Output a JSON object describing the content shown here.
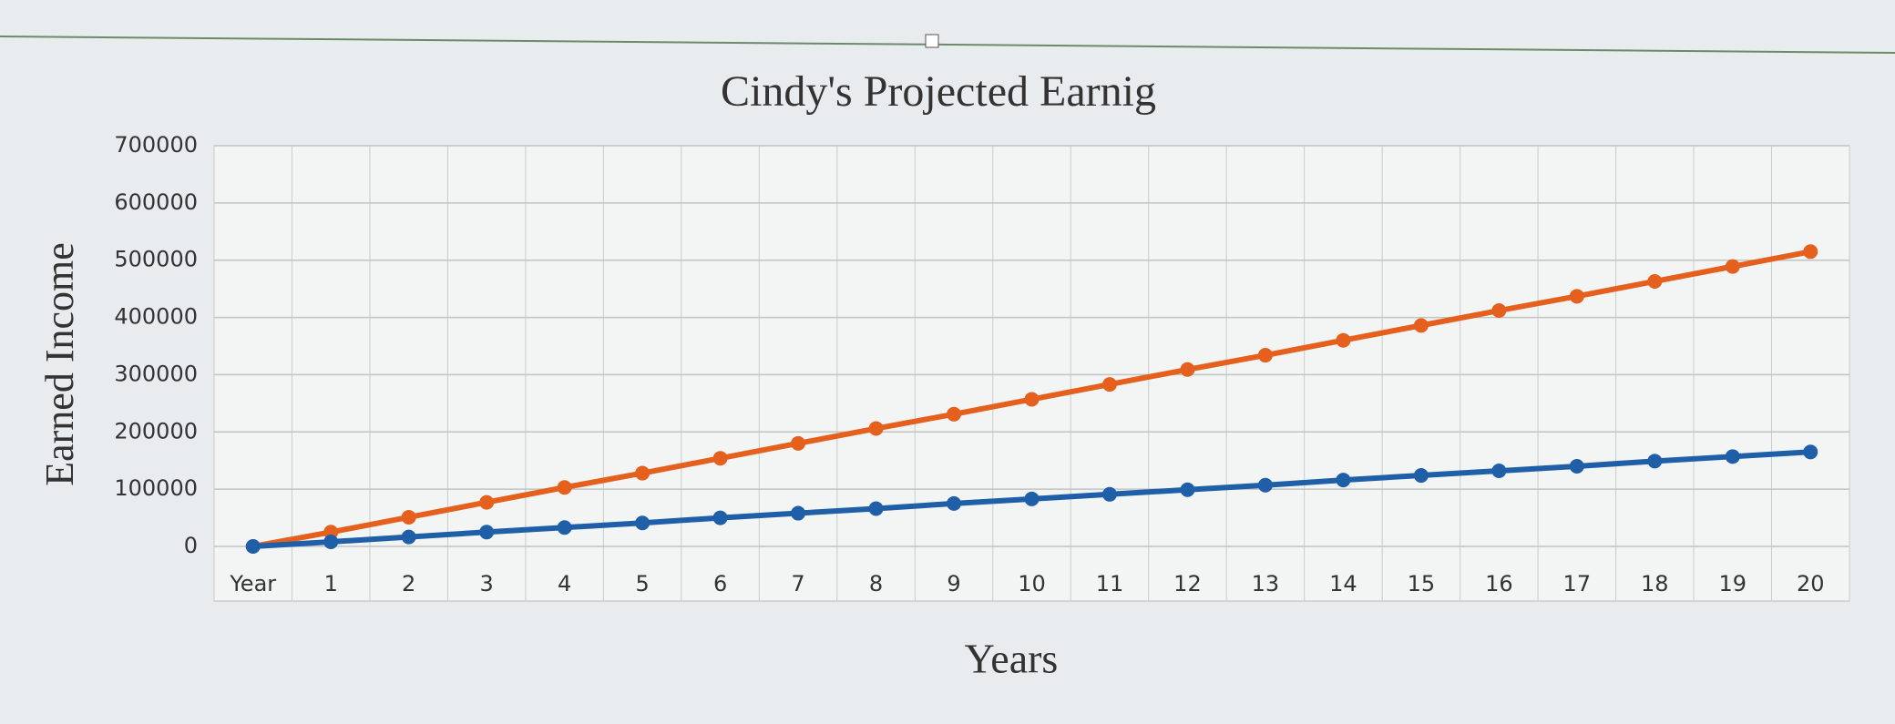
{
  "chart_data": {
    "type": "line",
    "title": "Cindy's Projected Earnig",
    "x_label": "Years",
    "y_label": "Earned Income",
    "categories": [
      "Year",
      "1",
      "2",
      "3",
      "4",
      "5",
      "6",
      "7",
      "8",
      "9",
      "10",
      "11",
      "12",
      "13",
      "14",
      "15",
      "16",
      "17",
      "18",
      "19",
      "20"
    ],
    "series": [
      {
        "color": "#e5601d",
        "values": [
          0,
          25000,
          51000,
          77000,
          103000,
          128000,
          154000,
          180000,
          206000,
          231000,
          257000,
          283000,
          309000,
          334000,
          360000,
          386000,
          412000,
          437000,
          463000,
          489000,
          515000
        ]
      },
      {
        "color": "#1f5fa8",
        "values": [
          0,
          8000,
          16500,
          25000,
          33000,
          41000,
          50000,
          58000,
          66000,
          75000,
          83000,
          91000,
          99000,
          107000,
          116000,
          124000,
          132000,
          140000,
          149000,
          157000,
          165000
        ]
      }
    ],
    "ylim": [
      0,
      700000
    ],
    "yticks": [
      0,
      100000,
      200000,
      300000,
      400000,
      500000,
      600000,
      700000
    ],
    "grid": true
  }
}
